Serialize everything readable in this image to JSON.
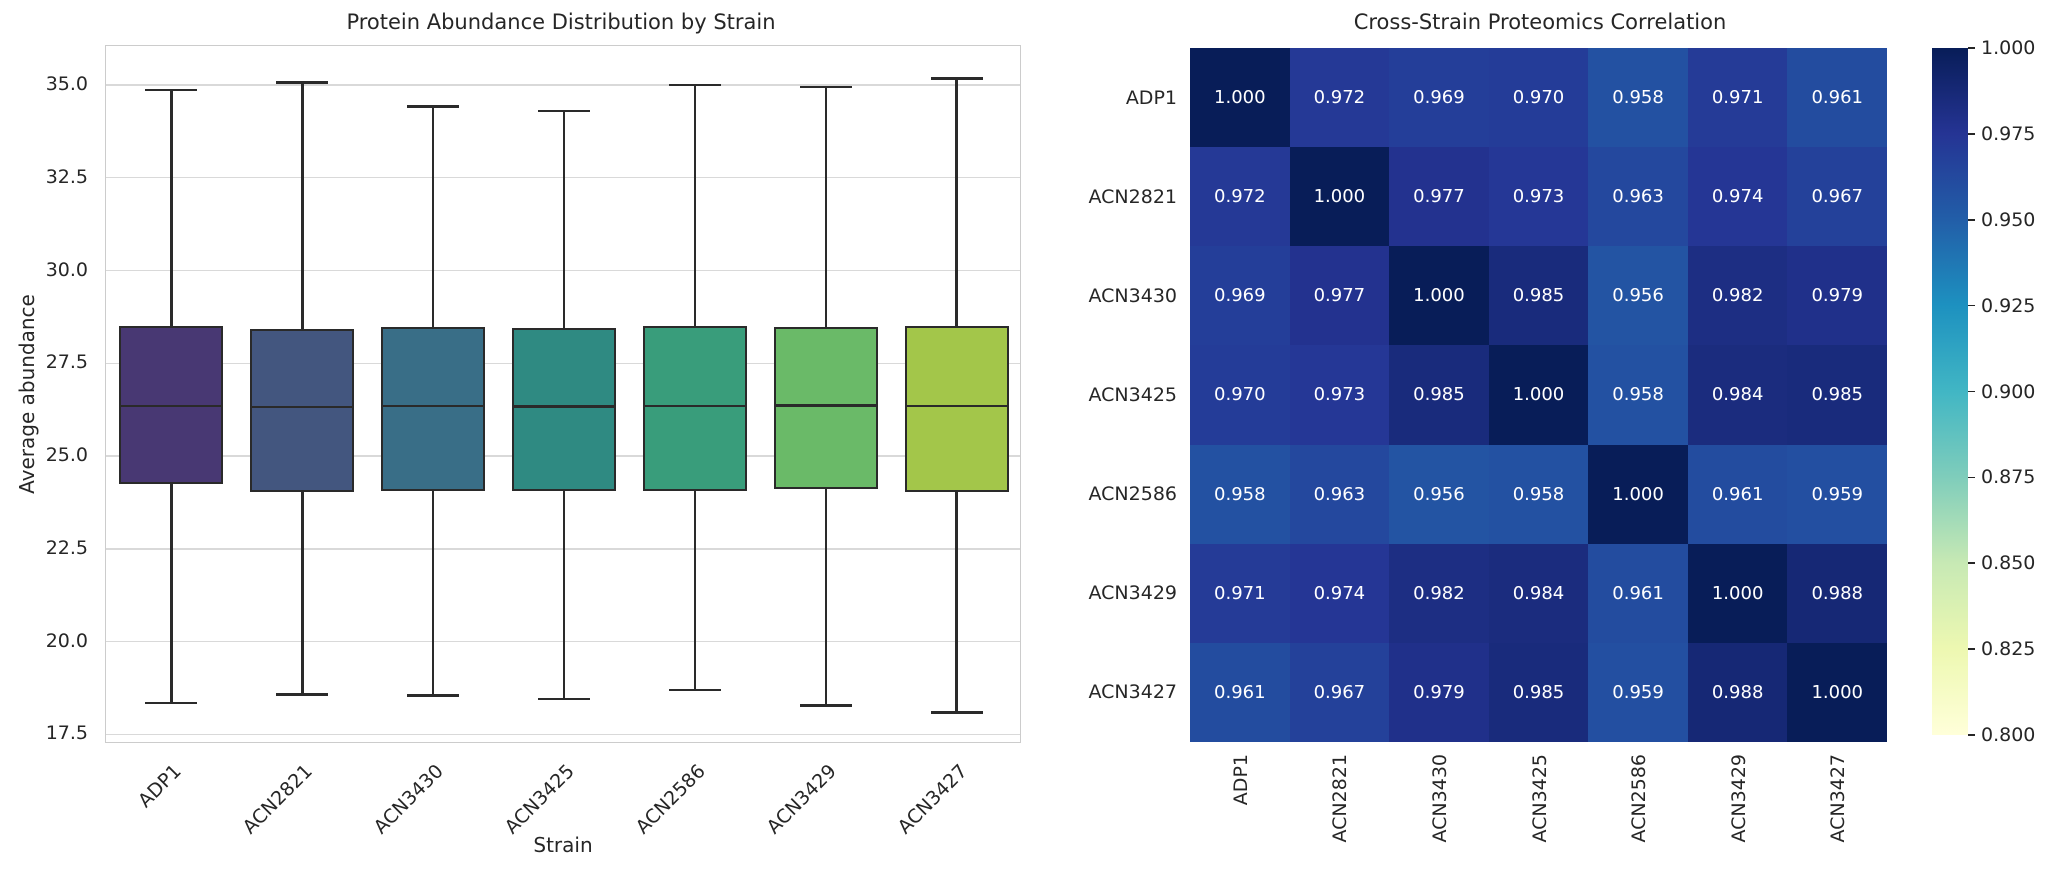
{
  "figure": {
    "background": "#ffffff"
  },
  "styles": {
    "text_color": "#262626",
    "grid_color": "#d9d9d9",
    "axes_edge_color": "#cccccc",
    "box_line_color": "#2a2a2a",
    "heatmap_annot_color": "#ffffff"
  },
  "chart_data": [
    {
      "type": "box",
      "title": "Protein Abundance Distribution by Strain",
      "xlabel": "Strain",
      "ylabel": "Average abundance",
      "categories": [
        "ADP1",
        "ACN2821",
        "ACN3430",
        "ACN3425",
        "ACN2586",
        "ACN3429",
        "ACN3427"
      ],
      "yticks": [
        17.5,
        20.0,
        22.5,
        25.0,
        27.5,
        30.0,
        32.5,
        35.0
      ],
      "ylim": [
        17.24,
        36.05
      ],
      "grid": true,
      "box_colors": [
        "#483873",
        "#43567f",
        "#396e87",
        "#2f8a82",
        "#399d7b",
        "#6aba68",
        "#a3c64a"
      ],
      "series": [
        {
          "name": "ADP1",
          "whisker_low": 18.35,
          "q1": 24.24,
          "median": 26.35,
          "q3": 28.5,
          "whisker_high": 34.87
        },
        {
          "name": "ACN2821",
          "whisker_low": 18.58,
          "q1": 24.03,
          "median": 26.32,
          "q3": 28.43,
          "whisker_high": 35.07
        },
        {
          "name": "ACN3430",
          "whisker_low": 18.55,
          "q1": 24.05,
          "median": 26.35,
          "q3": 28.47,
          "whisker_high": 34.42
        },
        {
          "name": "ACN3425",
          "whisker_low": 18.46,
          "q1": 24.07,
          "median": 26.34,
          "q3": 28.45,
          "whisker_high": 34.3
        },
        {
          "name": "ACN2586",
          "whisker_low": 18.7,
          "q1": 24.06,
          "median": 26.35,
          "q3": 28.5,
          "whisker_high": 35.0
        },
        {
          "name": "ACN3429",
          "whisker_low": 18.28,
          "q1": 24.1,
          "median": 26.36,
          "q3": 28.48,
          "whisker_high": 34.95
        },
        {
          "name": "ACN3427",
          "whisker_low": 18.09,
          "q1": 24.04,
          "median": 26.35,
          "q3": 28.51,
          "whisker_high": 35.18
        }
      ]
    },
    {
      "type": "heatmap",
      "title": "Cross-Strain Proteomics Correlation",
      "categories": [
        "ADP1",
        "ACN2821",
        "ACN3430",
        "ACN3425",
        "ACN2586",
        "ACN3429",
        "ACN3427"
      ],
      "matrix": [
        [
          1.0,
          0.972,
          0.969,
          0.97,
          0.958,
          0.971,
          0.961
        ],
        [
          0.972,
          1.0,
          0.977,
          0.973,
          0.963,
          0.974,
          0.967
        ],
        [
          0.969,
          0.977,
          1.0,
          0.985,
          0.956,
          0.982,
          0.979
        ],
        [
          0.97,
          0.973,
          0.985,
          1.0,
          0.958,
          0.984,
          0.985
        ],
        [
          0.958,
          0.963,
          0.956,
          0.958,
          1.0,
          0.961,
          0.959
        ],
        [
          0.971,
          0.974,
          0.982,
          0.984,
          0.961,
          1.0,
          0.988
        ],
        [
          0.961,
          0.967,
          0.979,
          0.985,
          0.959,
          0.988,
          1.0
        ]
      ],
      "vmin": 0.8,
      "vmax": 1.0,
      "colormap_name": "YlGnBu",
      "colormap_stops_low_to_high": [
        "#ffffd9",
        "#edf8b1",
        "#c7e9b4",
        "#7fcdbb",
        "#41b6c4",
        "#1d91c0",
        "#225ea8",
        "#253494",
        "#081d58"
      ],
      "colorbar_ticks": [
        "1.000",
        "0.975",
        "0.950",
        "0.925",
        "0.900",
        "0.875",
        "0.850",
        "0.825",
        "0.800"
      ],
      "legend_position": "right-colorbar",
      "cell_text_color": "#ffffff"
    }
  ]
}
